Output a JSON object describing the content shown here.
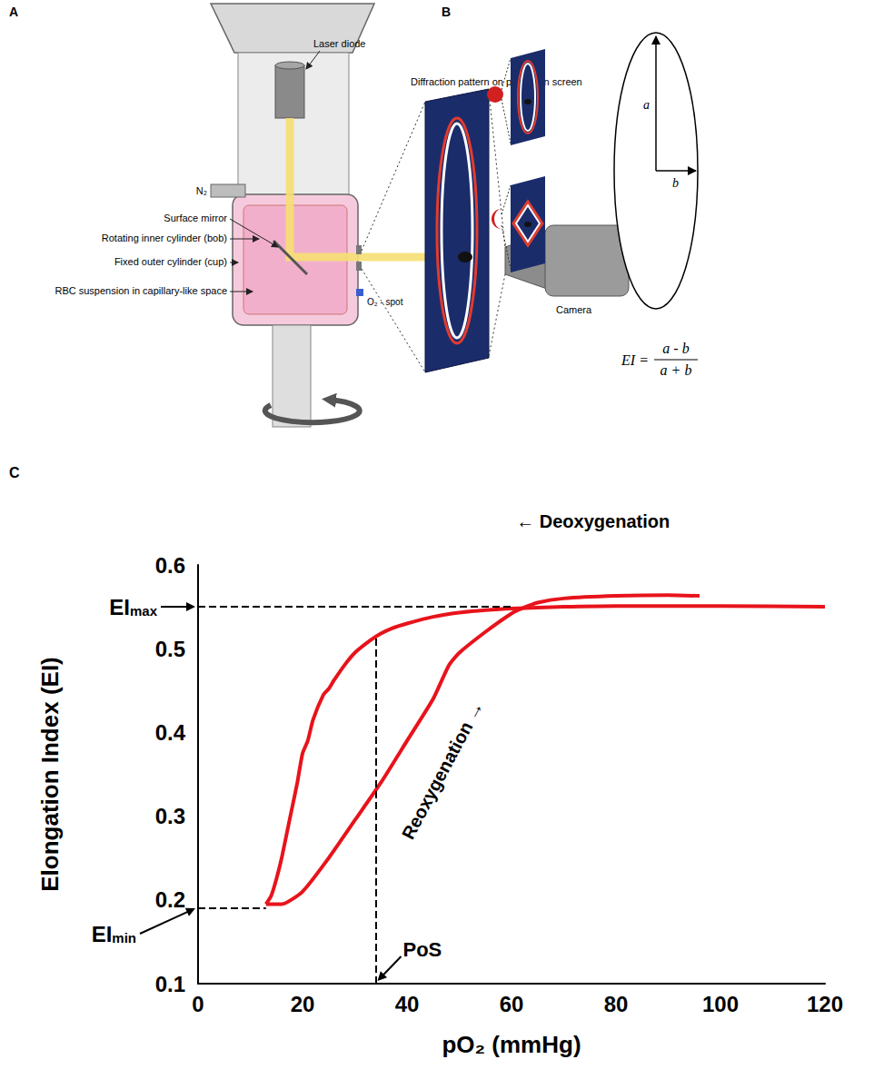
{
  "figure": {
    "panel_a": {
      "letter": "A",
      "labels": {
        "laser": "Laser diode",
        "screen": "Diffraction pattern on projection screen",
        "gas": "N₂",
        "mirror": "Surface mirror",
        "bob": "Rotating inner cylinder (bob)",
        "cup": "Fixed outer cylinder (cup)",
        "suspension": "RBC suspension in capillary-like space",
        "spot": "O₂ - spot",
        "camera": "Camera"
      }
    },
    "panel_b": {
      "letter": "B",
      "axis_a": "a",
      "axis_b": "b",
      "formula": {
        "lhs": "EI =",
        "numerator": "a - b",
        "denominator": "a + b"
      }
    },
    "panel_c": {
      "letter": "C"
    }
  },
  "chart_data": {
    "type": "line",
    "xlabel": "pO₂ (mmHg)",
    "ylabel": "Elongation Index (EI)",
    "xlim": [
      0,
      120
    ],
    "xticks": [
      0,
      20,
      40,
      60,
      80,
      100,
      120
    ],
    "ylim": [
      0.1,
      0.6
    ],
    "yticks": [
      0.1,
      0.2,
      0.3,
      0.4,
      0.5,
      0.6
    ],
    "grid": false,
    "series": [
      {
        "color": "#e8131b",
        "x": [
          120,
          100,
          80,
          70,
          60,
          55,
          50,
          45,
          40,
          37,
          35,
          33,
          30,
          28,
          26,
          25,
          24,
          22,
          21,
          20,
          19,
          18,
          17,
          16,
          15,
          14,
          13
        ],
        "values": [
          0.55,
          0.551,
          0.551,
          0.55,
          0.548,
          0.546,
          0.543,
          0.538,
          0.53,
          0.524,
          0.518,
          0.51,
          0.495,
          0.48,
          0.462,
          0.452,
          0.445,
          0.415,
          0.39,
          0.375,
          0.34,
          0.31,
          0.28,
          0.25,
          0.225,
          0.205,
          0.195
        ]
      },
      {
        "color": "#e8131b",
        "x": [
          13,
          16,
          20,
          25,
          30,
          35,
          40,
          45,
          48,
          50,
          55,
          60,
          62,
          65,
          70,
          80,
          90,
          96
        ],
        "values": [
          0.195,
          0.195,
          0.21,
          0.25,
          0.295,
          0.34,
          0.39,
          0.44,
          0.48,
          0.495,
          0.52,
          0.542,
          0.548,
          0.555,
          0.56,
          0.563,
          0.564,
          0.563
        ]
      }
    ],
    "annotations": [
      "← Deoxygenation",
      "Reoxygenation →"
    ],
    "reference_lines": [
      {
        "label": {
          "text": "EI",
          "sub": "max"
        },
        "y": 0.55,
        "x_end": 60
      },
      {
        "label": {
          "text": "EI",
          "sub": "min"
        },
        "y": 0.19,
        "x_end": 13
      },
      {
        "label": {
          "text": "PoS"
        },
        "x": 34,
        "y_end": 0.515
      }
    ]
  }
}
